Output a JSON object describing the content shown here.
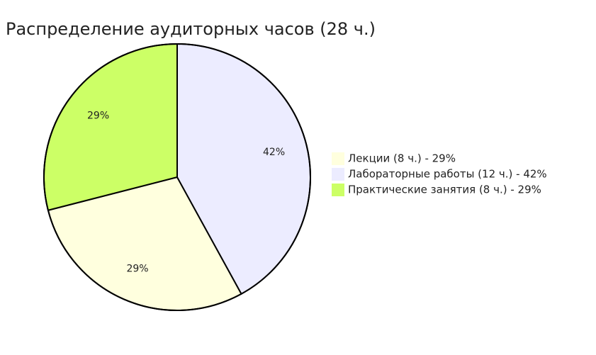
{
  "chart_data": {
    "type": "pie",
    "title": "Распределение аудиторных часов (28 ч.)",
    "categories": [
      "Лекции (8 ч.) - 29%",
      "Лабораторные работы (12 ч.) - 42%",
      "Практические занятия (8 ч.) - 29%"
    ],
    "values": [
      29,
      42,
      29
    ],
    "value_labels": [
      "29%",
      "42%",
      "29%"
    ],
    "colors": [
      "#ffffde",
      "#ececff",
      "#ccff66"
    ]
  }
}
